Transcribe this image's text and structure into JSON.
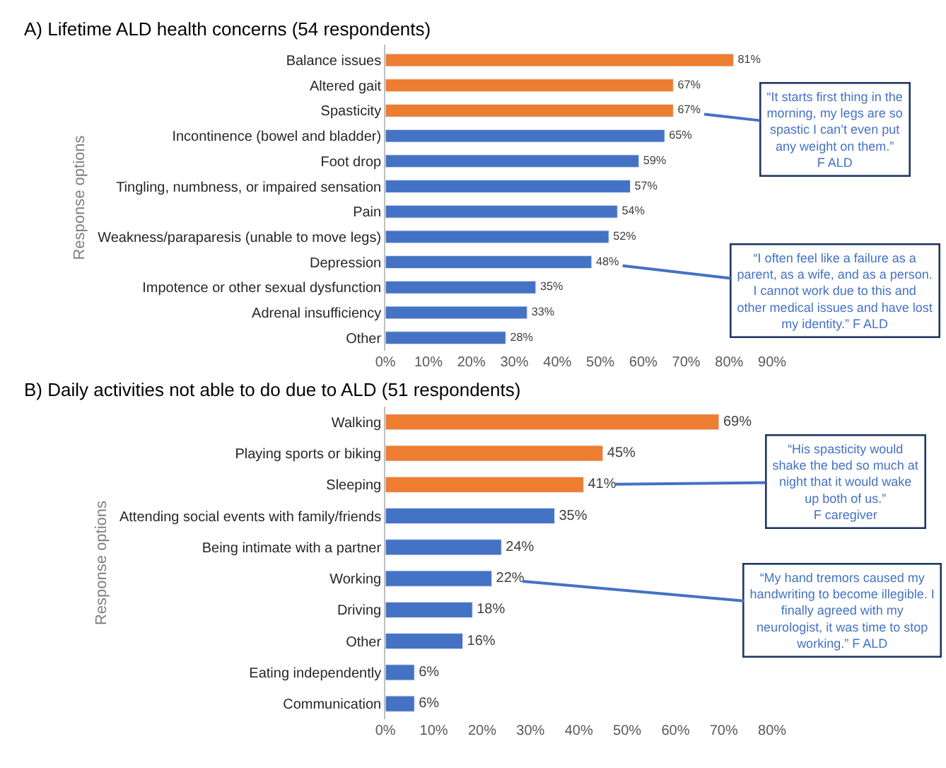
{
  "chart_data": [
    {
      "type": "bar",
      "orientation": "horizontal",
      "title": "A) Lifetime ALD health concerns (54 respondents)",
      "ylabel": "Response options",
      "categories": [
        "Balance issues",
        "Altered gait",
        "Spasticity",
        "Incontinence (bowel and bladder)",
        "Foot drop",
        "Tingling, numbness, or impaired sensation",
        "Pain",
        "Weakness/paraparesis (unable to move legs)",
        "Depression",
        "Impotence or other sexual dysfunction",
        "Adrenal insufficiency",
        "Other"
      ],
      "values": [
        81,
        67,
        67,
        65,
        59,
        57,
        54,
        52,
        48,
        35,
        33,
        28
      ],
      "value_labels": [
        "81%",
        "67%",
        "67%",
        "65%",
        "59%",
        "57%",
        "54%",
        "52%",
        "48%",
        "35%",
        "33%",
        "28%"
      ],
      "colors": [
        "#ed7d31",
        "#ed7d31",
        "#ed7d31",
        "#4472c4",
        "#4472c4",
        "#4472c4",
        "#4472c4",
        "#4472c4",
        "#4472c4",
        "#4472c4",
        "#4472c4",
        "#4472c4"
      ],
      "xlim": [
        0,
        90
      ],
      "xticks": [
        {
          "value": 0,
          "label": "0%"
        },
        {
          "value": 10,
          "label": "10%"
        },
        {
          "value": 20,
          "label": "20%"
        },
        {
          "value": 30,
          "label": "30%"
        },
        {
          "value": 40,
          "label": "40%"
        },
        {
          "value": 50,
          "label": "50%"
        },
        {
          "value": 60,
          "label": "60%"
        },
        {
          "value": 70,
          "label": "70%"
        },
        {
          "value": 80,
          "label": "80%"
        },
        {
          "value": 90,
          "label": "90%"
        }
      ],
      "annotations": [
        {
          "text": "“It starts first thing in the\nmorning, my legs are so\nspastic I can’t even put\nany weight on them.”\nF ALD",
          "x": 67,
          "y": "Spasticity"
        },
        {
          "text": "“I often feel like a failure as a\nparent, as a wife, and as a person.\nI cannot work due to this and\nother medical issues and have lost\nmy identity.” F ALD",
          "x": 48,
          "y": "Depression"
        }
      ],
      "grid": false
    },
    {
      "type": "bar",
      "orientation": "horizontal",
      "title": "B) Daily activities not able to do due to ALD (51 respondents)",
      "ylabel": "Response options",
      "categories": [
        "Walking",
        "Playing sports or biking",
        "Sleeping",
        "Attending social events with family/friends",
        "Being intimate with a partner",
        "Working",
        "Driving",
        "Other",
        "Eating independently",
        "Communication"
      ],
      "values": [
        69,
        45,
        41,
        35,
        24,
        22,
        18,
        16,
        6,
        6
      ],
      "value_labels": [
        "69%",
        "45%",
        "41%",
        "35%",
        "24%",
        "22%",
        "18%",
        "16%",
        "6%",
        "6%"
      ],
      "colors": [
        "#ed7d31",
        "#ed7d31",
        "#ed7d31",
        "#4472c4",
        "#4472c4",
        "#4472c4",
        "#4472c4",
        "#4472c4",
        "#4472c4",
        "#4472c4"
      ],
      "xlim": [
        0,
        80
      ],
      "xticks": [
        {
          "value": 0,
          "label": "0%"
        },
        {
          "value": 10,
          "label": "10%"
        },
        {
          "value": 20,
          "label": "20%"
        },
        {
          "value": 30,
          "label": "30%"
        },
        {
          "value": 40,
          "label": "40%"
        },
        {
          "value": 50,
          "label": "50%"
        },
        {
          "value": 60,
          "label": "60%"
        },
        {
          "value": 70,
          "label": "70%"
        },
        {
          "value": 80,
          "label": "80%"
        }
      ],
      "annotations": [
        {
          "text": "“His spasticity would\nshake the bed so much at\nnight that it would wake\nup both of us.”\nF caregiver",
          "x": 41,
          "y": "Sleeping"
        },
        {
          "text": "“My hand tremors caused my\nhandwriting to become illegible. I\nfinally agreed with my\nneurologist, it was time to stop\nworking.” F ALD",
          "x": 22,
          "y": "Working"
        }
      ],
      "grid": false
    }
  ]
}
